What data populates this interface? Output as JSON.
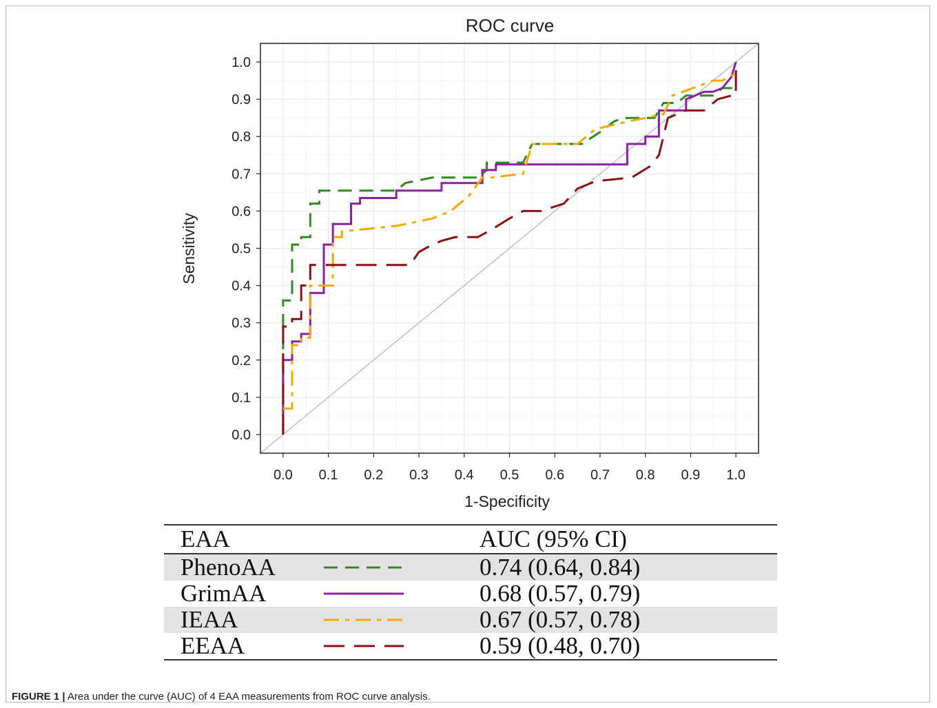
{
  "chart_data": {
    "type": "line",
    "title": "ROC curve",
    "xlabel": "1-Specificity",
    "ylabel": "Sensitivity",
    "xlim": [
      -0.05,
      1.05
    ],
    "ylim": [
      -0.05,
      1.05
    ],
    "xticks": [
      "0.0",
      "0.1",
      "0.2",
      "0.3",
      "0.4",
      "0.5",
      "0.6",
      "0.7",
      "0.8",
      "0.9",
      "1.0"
    ],
    "yticks": [
      "0.0",
      "0.1",
      "0.2",
      "0.3",
      "0.4",
      "0.5",
      "0.6",
      "0.7",
      "0.8",
      "0.9",
      "1.0"
    ],
    "grid": true,
    "reference_line": {
      "x": [
        0,
        1
      ],
      "y": [
        0,
        1
      ],
      "color": "#b8b8b8"
    },
    "series": [
      {
        "name": "PhenoAA",
        "color": "#2e8b1e",
        "dash": "dashed",
        "x": [
          0,
          0,
          0.02,
          0.02,
          0.04,
          0.04,
          0.06,
          0.06,
          0.08,
          0.08,
          0.25,
          0.27,
          0.33,
          0.43,
          0.45,
          0.45,
          0.53,
          0.55,
          0.66,
          0.71,
          0.73,
          0.75,
          0.82,
          0.84,
          0.87,
          0.89,
          0.91,
          0.95,
          0.97,
          1.0,
          1.0
        ],
        "y": [
          0,
          0.36,
          0.36,
          0.51,
          0.51,
          0.53,
          0.53,
          0.62,
          0.62,
          0.655,
          0.655,
          0.675,
          0.69,
          0.69,
          0.71,
          0.73,
          0.73,
          0.78,
          0.78,
          0.82,
          0.84,
          0.85,
          0.85,
          0.89,
          0.89,
          0.91,
          0.91,
          0.91,
          0.93,
          0.93,
          1.0
        ]
      },
      {
        "name": "GrimAA",
        "color": "#8b1fa8",
        "dash": "solid",
        "x": [
          0,
          0,
          0.02,
          0.02,
          0.04,
          0.04,
          0.06,
          0.06,
          0.09,
          0.09,
          0.11,
          0.11,
          0.15,
          0.15,
          0.17,
          0.17,
          0.25,
          0.25,
          0.35,
          0.35,
          0.44,
          0.44,
          0.47,
          0.47,
          0.76,
          0.76,
          0.8,
          0.8,
          0.83,
          0.83,
          0.89,
          0.89,
          0.93,
          0.95,
          0.97,
          0.99,
          1.0
        ],
        "y": [
          0,
          0.2,
          0.2,
          0.25,
          0.25,
          0.27,
          0.27,
          0.38,
          0.38,
          0.51,
          0.51,
          0.565,
          0.565,
          0.62,
          0.62,
          0.635,
          0.635,
          0.655,
          0.655,
          0.675,
          0.675,
          0.71,
          0.71,
          0.725,
          0.725,
          0.78,
          0.78,
          0.8,
          0.8,
          0.87,
          0.87,
          0.9,
          0.92,
          0.92,
          0.93,
          0.96,
          1.0
        ]
      },
      {
        "name": "IEAA",
        "color": "#f5a800",
        "dash": "dashdot",
        "x": [
          0,
          0.02,
          0.02,
          0.04,
          0.04,
          0.06,
          0.06,
          0.11,
          0.11,
          0.13,
          0.13,
          0.25,
          0.33,
          0.37,
          0.41,
          0.44,
          0.46,
          0.53,
          0.55,
          0.65,
          0.69,
          0.76,
          0.84,
          0.86,
          0.95,
          0.97,
          1.0
        ],
        "y": [
          0.07,
          0.07,
          0.24,
          0.24,
          0.26,
          0.26,
          0.4,
          0.4,
          0.53,
          0.53,
          0.545,
          0.56,
          0.58,
          0.6,
          0.64,
          0.69,
          0.69,
          0.7,
          0.78,
          0.78,
          0.82,
          0.84,
          0.86,
          0.91,
          0.95,
          0.95,
          0.97
        ]
      },
      {
        "name": "EEAA",
        "color": "#8b1010",
        "dash": "longdash",
        "x": [
          0,
          0,
          0.02,
          0.02,
          0.04,
          0.04,
          0.06,
          0.06,
          0.08,
          0.08,
          0.28,
          0.3,
          0.33,
          0.35,
          0.38,
          0.43,
          0.46,
          0.5,
          0.53,
          0.57,
          0.62,
          0.65,
          0.69,
          0.77,
          0.81,
          0.83,
          0.85,
          0.89,
          0.93,
          0.96,
          0.99,
          1.0,
          1.0
        ],
        "y": [
          0,
          0.29,
          0.29,
          0.31,
          0.31,
          0.4,
          0.4,
          0.455,
          0.455,
          0.455,
          0.455,
          0.49,
          0.51,
          0.52,
          0.53,
          0.53,
          0.55,
          0.58,
          0.6,
          0.6,
          0.62,
          0.66,
          0.68,
          0.69,
          0.72,
          0.75,
          0.85,
          0.87,
          0.87,
          0.9,
          0.91,
          0.91,
          1.0
        ]
      }
    ],
    "legend_placement": "below"
  },
  "table": {
    "col1_header": "EAA",
    "col2_header": "AUC (95% CI)",
    "rows": [
      {
        "name": "PhenoAA",
        "auc": "0.74 (0.64, 0.84)",
        "color": "#2e8b1e",
        "dash": "dashed"
      },
      {
        "name": "GrimAA",
        "auc": "0.68 (0.57, 0.79)",
        "color": "#8b1fa8",
        "dash": "solid"
      },
      {
        "name": "IEAA",
        "auc": "0.67 (0.57, 0.78)",
        "color": "#f5a800",
        "dash": "dashdot"
      },
      {
        "name": "EEAA",
        "auc": "0.59 (0.48, 0.70)",
        "color": "#8b1010",
        "dash": "longdash"
      }
    ]
  },
  "caption": {
    "label": "FIGURE 1 |",
    "text": " Area under the curve (AUC) of 4 EAA measurements from ROC curve analysis."
  }
}
